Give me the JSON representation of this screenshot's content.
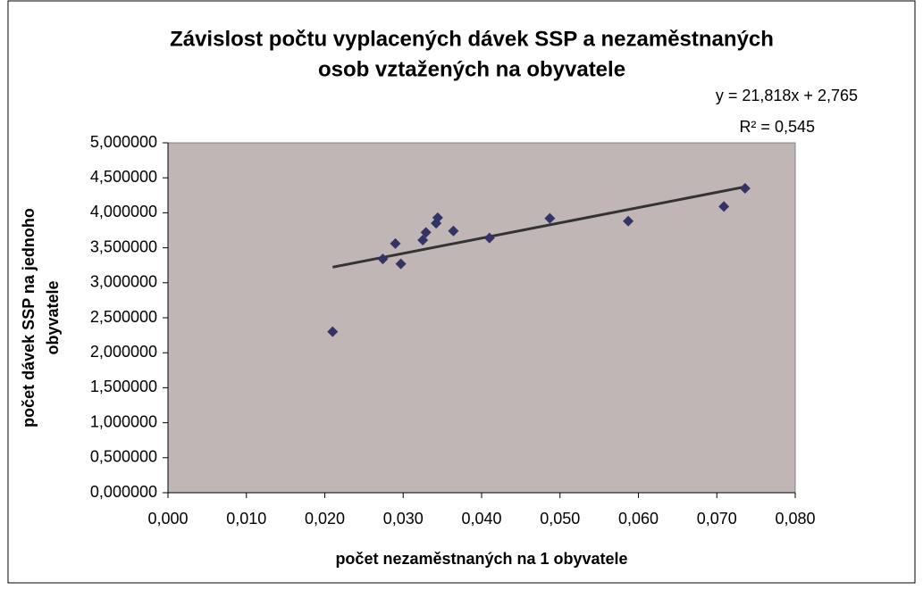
{
  "chart_data": {
    "type": "scatter",
    "title_lines": [
      "Závislost počtu vyplacených dávek SSP a nezaměstnaných",
      "osob vztažených na obyvatele"
    ],
    "x_label": "počet nezaměstnaných na 1 obyvatele",
    "y_label_lines": [
      "počet dávek SSP na jednoho",
      "obyvatele"
    ],
    "series": [
      {
        "color": "#333366",
        "x": [
          0.021,
          0.0274,
          0.029,
          0.0297,
          0.0325,
          0.0329,
          0.0342,
          0.0344,
          0.0364,
          0.041,
          0.0487,
          0.0587,
          0.0709,
          0.0736
        ],
        "values": [
          2.3,
          3.34,
          3.56,
          3.27,
          3.61,
          3.72,
          3.85,
          3.93,
          3.74,
          3.64,
          3.92,
          3.88,
          4.09,
          4.35
        ]
      }
    ],
    "trendline": {
      "slope": 21.818,
      "intercept": 2.765,
      "color": "#333333",
      "equation": "y = 21,818x + 2,765",
      "r2_label": "R² = 0,545"
    },
    "xlim": [
      0,
      0.08
    ],
    "xticks": [
      {
        "value": 0,
        "label": "0,000"
      },
      {
        "value": 0.01,
        "label": "0,010"
      },
      {
        "value": 0.02,
        "label": "0,020"
      },
      {
        "value": 0.03,
        "label": "0,030"
      },
      {
        "value": 0.04,
        "label": "0,040"
      },
      {
        "value": 0.05,
        "label": "0,050"
      },
      {
        "value": 0.06,
        "label": "0,060"
      },
      {
        "value": 0.07,
        "label": "0,070"
      },
      {
        "value": 0.08,
        "label": "0,080"
      }
    ],
    "ylim": [
      0,
      5
    ],
    "yticks": [
      {
        "value": 0,
        "label": "0,000000"
      },
      {
        "value": 0.5,
        "label": "0,500000"
      },
      {
        "value": 1,
        "label": "1,000000"
      },
      {
        "value": 1.5,
        "label": "1,500000"
      },
      {
        "value": 2,
        "label": "2,000000"
      },
      {
        "value": 2.5,
        "label": "2,500000"
      },
      {
        "value": 3,
        "label": "3,000000"
      },
      {
        "value": 3.5,
        "label": "3,500000"
      },
      {
        "value": 4,
        "label": "4,000000"
      },
      {
        "value": 4.5,
        "label": "4,500000"
      },
      {
        "value": 5,
        "label": "5,000000"
      }
    ],
    "plot_background": "#c0b6b6",
    "grid": false
  }
}
